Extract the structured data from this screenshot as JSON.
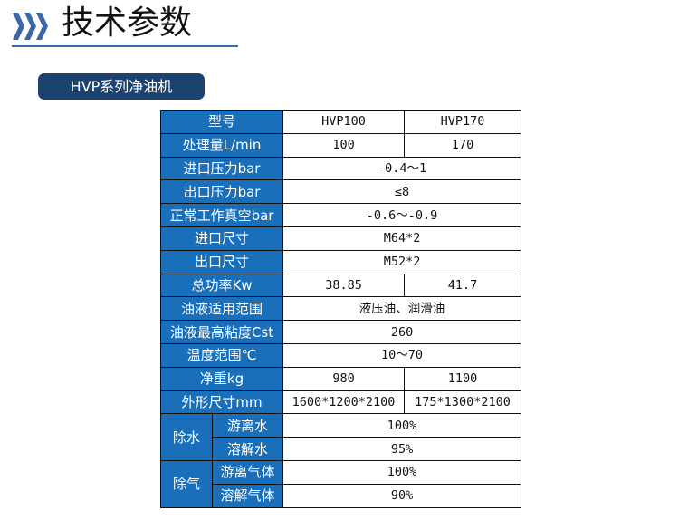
{
  "header": {
    "title": "技术参数",
    "icon": "triple-chevron-right-icon",
    "accent": "#3a68a8"
  },
  "section": {
    "label": "HVP系列净油机",
    "color": "#1e4270"
  },
  "table": {
    "header_color": "#1a6fba",
    "rows": [
      {
        "label": "型号",
        "values": [
          "HVP100",
          "HVP170"
        ]
      },
      {
        "label": "处理量L/min",
        "values": [
          "100",
          "170"
        ]
      },
      {
        "label": "进口压力bar",
        "values": [
          "-0.4～1"
        ]
      },
      {
        "label": "出口压力bar",
        "values": [
          "≤8"
        ]
      },
      {
        "label": "正常工作真空bar",
        "values": [
          "-0.6～-0.9"
        ]
      },
      {
        "label": "进口尺寸",
        "values": [
          "M64*2"
        ]
      },
      {
        "label": "出口尺寸",
        "values": [
          "M52*2"
        ]
      },
      {
        "label": "总功率Kw",
        "values": [
          "38.85",
          "41.7"
        ]
      },
      {
        "label": "油液适用范围",
        "values": [
          "液压油、润滑油"
        ]
      },
      {
        "label": "油液最高粘度Cst",
        "values": [
          "260"
        ]
      },
      {
        "label": "温度范围℃",
        "values": [
          "10～70"
        ]
      },
      {
        "label": "净重kg",
        "values": [
          "980",
          "1100"
        ]
      },
      {
        "label": "外形尺寸mm",
        "values": [
          "1600*1200*2100",
          "175*1300*2100"
        ]
      }
    ],
    "groups": [
      {
        "label": "除水",
        "rows": [
          {
            "label": "游离水",
            "value": "100%"
          },
          {
            "label": "溶解水",
            "value": "95%"
          }
        ]
      },
      {
        "label": "除气",
        "rows": [
          {
            "label": "游离气体",
            "value": "100%"
          },
          {
            "label": "溶解气体",
            "value": "90%"
          }
        ]
      }
    ]
  }
}
